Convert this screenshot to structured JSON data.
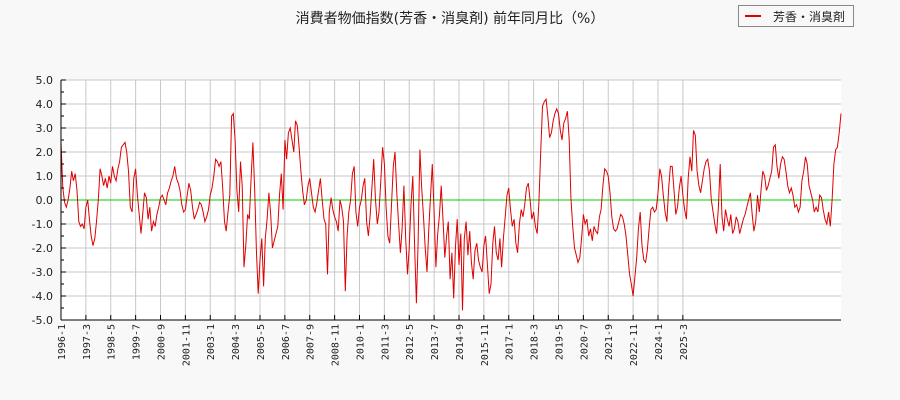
{
  "title": "消費者物価指数(芳香・消臭剤) 前年同月比（%）",
  "legend": {
    "label": "芳香・消臭剤",
    "color": "#e00000"
  },
  "chart_data": {
    "type": "line",
    "title": "消費者物価指数(芳香・消臭剤) 前年同月比（%）",
    "xlabel": "",
    "ylabel": "",
    "ylim": [
      -5.0,
      5.0
    ],
    "yticks": [
      "5.0",
      "4.0",
      "3.0",
      "2.0",
      "1.0",
      "0.0",
      "-1.0",
      "-2.0",
      "-3.0",
      "-4.0",
      "-5.0"
    ],
    "xticks": [
      "1996-1",
      "1997-3",
      "1998-5",
      "1999-7",
      "2000-9",
      "2001-11",
      "2003-1",
      "2004-3",
      "2005-5",
      "2006-7",
      "2007-9",
      "2008-11",
      "2010-1",
      "2011-3",
      "2012-5",
      "2013-7",
      "2014-9",
      "2015-11",
      "2017-1",
      "2018-3",
      "2019-5",
      "2020-7",
      "2021-9",
      "2022-11",
      "2024-1",
      "2025-3"
    ],
    "grid": true,
    "legend_position": "top-right",
    "reference_line": {
      "y": 0.0,
      "color": "#00cc00"
    },
    "series": [
      {
        "name": "芳香・消臭剤",
        "color": "#e00000",
        "start": "1996-1",
        "frequency": "monthly",
        "values": [
          2.4,
          0.5,
          -0.1,
          -0.3,
          0.0,
          0.5,
          1.2,
          0.8,
          1.1,
          0.4,
          -0.9,
          -1.1,
          -1.0,
          -1.2,
          -0.3,
          0.0,
          -0.8,
          -1.5,
          -1.9,
          -1.6,
          -0.9,
          0.0,
          1.3,
          1.0,
          0.6,
          0.9,
          0.5,
          1.0,
          0.7,
          1.4,
          1.0,
          0.8,
          1.3,
          1.6,
          2.2,
          2.3,
          2.4,
          2.0,
          1.2,
          -0.3,
          -0.5,
          0.9,
          1.3,
          0.2,
          -0.6,
          -1.4,
          -0.6,
          0.3,
          0.1,
          -0.8,
          -0.3,
          -1.3,
          -0.9,
          -1.1,
          -0.6,
          -0.3,
          0.1,
          0.2,
          0.0,
          -0.2,
          0.3,
          0.5,
          0.8,
          1.0,
          1.4,
          0.9,
          0.7,
          0.4,
          -0.2,
          -0.5,
          -0.4,
          0.2,
          0.7,
          0.4,
          -0.3,
          -0.8,
          -0.6,
          -0.4,
          -0.1,
          -0.2,
          -0.5,
          -0.9,
          -0.7,
          -0.4,
          0.2,
          0.5,
          1.0,
          1.7,
          1.6,
          1.4,
          1.6,
          0.5,
          -0.9,
          -1.3,
          -0.5,
          0.2,
          3.5,
          3.6,
          2.5,
          0.4,
          -0.5,
          1.6,
          0.6,
          -2.8,
          -1.9,
          -0.6,
          -0.8,
          0.9,
          2.4,
          0.4,
          -2.1,
          -3.9,
          -2.5,
          -1.6,
          -3.6,
          -1.6,
          -0.8,
          0.3,
          -0.6,
          -2.0,
          -1.7,
          -1.4,
          -1.1,
          0.2,
          1.1,
          -0.4,
          2.5,
          1.7,
          2.8,
          3.0,
          2.5,
          2.0,
          3.3,
          3.1,
          2.2,
          1.2,
          0.4,
          -0.2,
          0.0,
          0.6,
          0.9,
          0.3,
          -0.3,
          -0.5,
          -0.1,
          0.4,
          0.9,
          0.0,
          -0.8,
          -1.0,
          -3.1,
          -0.5,
          0.1,
          -0.4,
          -0.7,
          -0.9,
          -1.3,
          0.0,
          -0.3,
          -0.9,
          -3.8,
          -1.5,
          -0.5,
          0.0,
          1.1,
          1.4,
          -0.5,
          -1.1,
          -0.3,
          0.0,
          0.6,
          0.9,
          -0.9,
          -1.5,
          -0.6,
          0.5,
          1.7,
          0.0,
          -1.0,
          -0.5,
          0.8,
          2.2,
          1.5,
          -0.3,
          -1.5,
          -1.8,
          -0.2,
          1.4,
          2.0,
          0.3,
          -1.0,
          -2.2,
          -1.2,
          0.6,
          -1.6,
          -3.1,
          -2.0,
          -0.2,
          1.0,
          -1.9,
          -4.3,
          -1.8,
          2.1,
          0.5,
          -0.7,
          -2.0,
          -3.0,
          -1.2,
          0.2,
          1.5,
          -0.5,
          -2.8,
          -1.4,
          -0.6,
          0.6,
          -0.8,
          -2.4,
          -1.5,
          -0.9,
          -3.3,
          -2.2,
          -4.1,
          -2.0,
          -0.8,
          -2.7,
          -1.4,
          -4.6,
          -1.6,
          -0.9,
          -2.3,
          -1.3,
          -2.6,
          -3.3,
          -2.1,
          -1.8,
          -2.5,
          -2.8,
          -3.0,
          -1.9,
          -1.5,
          -2.7,
          -3.9,
          -3.5,
          -1.8,
          -1.1,
          -2.2,
          -2.5,
          -1.6,
          -2.8,
          -1.6,
          -0.7,
          0.2,
          0.5,
          -0.4,
          -1.1,
          -0.8,
          -1.8,
          -2.2,
          -1.0,
          -0.4,
          -0.7,
          -0.2,
          0.5,
          0.7,
          0.0,
          -0.8,
          -0.5,
          -1.1,
          -1.4,
          -0.1,
          2.0,
          3.9,
          4.1,
          4.2,
          3.5,
          2.6,
          2.8,
          3.3,
          3.6,
          3.8,
          3.6,
          2.9,
          2.5,
          3.2,
          3.4,
          3.7,
          2.5,
          0.1,
          -1.1,
          -2.0,
          -2.3,
          -2.6,
          -2.4,
          -1.6,
          -0.6,
          -1.0,
          -0.8,
          -1.5,
          -1.2,
          -1.7,
          -1.1,
          -1.3,
          -1.4,
          -0.7,
          -0.4,
          0.6,
          1.3,
          1.2,
          1.0,
          0.3,
          -0.7,
          -1.2,
          -1.3,
          -1.2,
          -0.9,
          -0.6,
          -0.7,
          -1.0,
          -1.5,
          -2.3,
          -3.1,
          -3.5,
          -4.0,
          -3.2,
          -2.4,
          -1.2,
          -0.5,
          -1.9,
          -2.5,
          -2.6,
          -2.1,
          -1.2,
          -0.4,
          -0.3,
          -0.5,
          -0.4,
          0.3,
          1.3,
          1.0,
          0.2,
          -0.5,
          -0.9,
          0.5,
          1.4,
          1.4,
          0.4,
          -0.6,
          -0.3,
          0.5,
          1.0,
          0.2,
          -0.4,
          -0.8,
          0.9,
          1.8,
          1.2,
          2.9,
          2.7,
          1.2,
          0.6,
          0.3,
          0.8,
          1.3,
          1.6,
          1.7,
          1.2,
          0.0,
          -0.5,
          -1.0,
          -1.4,
          -0.3,
          1.5,
          -0.7,
          -1.3,
          -0.4,
          -0.8,
          -1.1,
          -0.6,
          -1.4,
          -1.2,
          -0.7,
          -0.9,
          -1.4,
          -1.1,
          -0.8,
          -0.6,
          -0.3,
          0.0,
          0.3,
          -0.6,
          -1.3,
          -0.9,
          0.2,
          -0.5,
          0.4,
          1.2,
          1.0,
          0.4,
          0.6,
          0.9,
          1.2,
          2.2,
          2.3,
          1.4,
          0.9,
          1.5,
          1.8,
          1.7,
          1.2,
          0.6,
          0.3,
          0.5,
          0.2,
          -0.3,
          -0.2,
          -0.5,
          -0.3,
          0.8,
          1.2,
          1.8,
          1.5,
          0.6,
          0.3,
          0.0,
          -0.5,
          -0.3,
          -0.5,
          0.2,
          0.1,
          -0.4,
          -0.8,
          -1.0,
          -0.5,
          -1.1,
          0.0,
          1.5,
          2.1,
          2.2,
          2.8,
          3.6
        ]
      }
    ]
  }
}
